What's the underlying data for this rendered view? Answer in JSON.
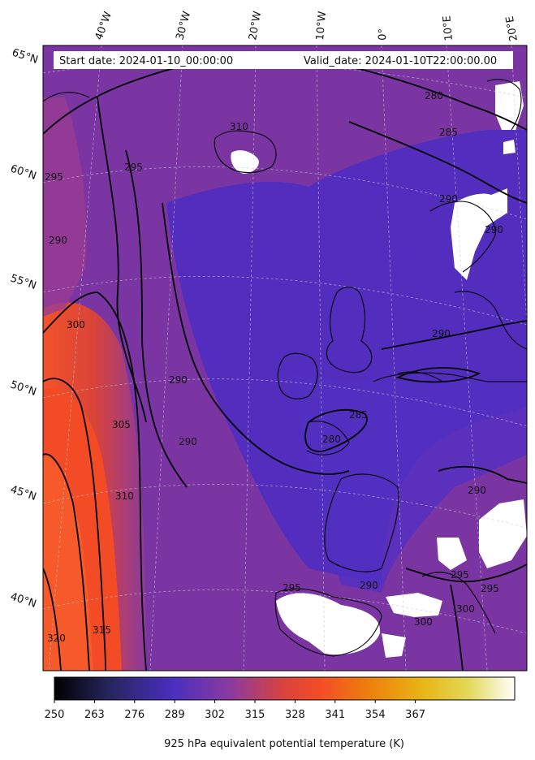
{
  "header": {
    "start_date": "Start date: 2024-01-10_00:00:00",
    "valid_date": "Valid_date: 2024-01-10T22:00:00.00"
  },
  "map": {
    "field": "equivalent potential temperature",
    "colormap": "CMRmap-like (black-blue-purple-red-orange-yellow-white)",
    "missing_color": "#ffffff",
    "coastline_color": "#000000",
    "gridline_style": "dashed light grey",
    "lon_labels": [
      "40°W",
      "30°W",
      "20°W",
      "10°W",
      "0°",
      "10°E",
      "20°E"
    ],
    "lat_labels": [
      "65°N",
      "60°N",
      "55°N",
      "50°N",
      "45°N",
      "40°N"
    ],
    "contour_labels": [
      "280",
      "285",
      "290",
      "295",
      "300",
      "305",
      "310",
      "315",
      "320",
      "290",
      "295",
      "290",
      "290",
      "285",
      "280",
      "290",
      "290",
      "295",
      "295",
      "300",
      "290",
      "290",
      "295",
      "300",
      "310"
    ]
  },
  "colorbar": {
    "label": "925 hPa equivalent potential temperature (K)",
    "ticks": [
      "250",
      "263",
      "276",
      "289",
      "302",
      "315",
      "328",
      "341",
      "354",
      "367"
    ],
    "colors": [
      "#000000",
      "#2b2b6e",
      "#4a2fbf",
      "#8a3a9e",
      "#d9443b",
      "#f05a1e",
      "#e99a10",
      "#e6c520",
      "#f3ee8e",
      "#ffffff"
    ]
  }
}
